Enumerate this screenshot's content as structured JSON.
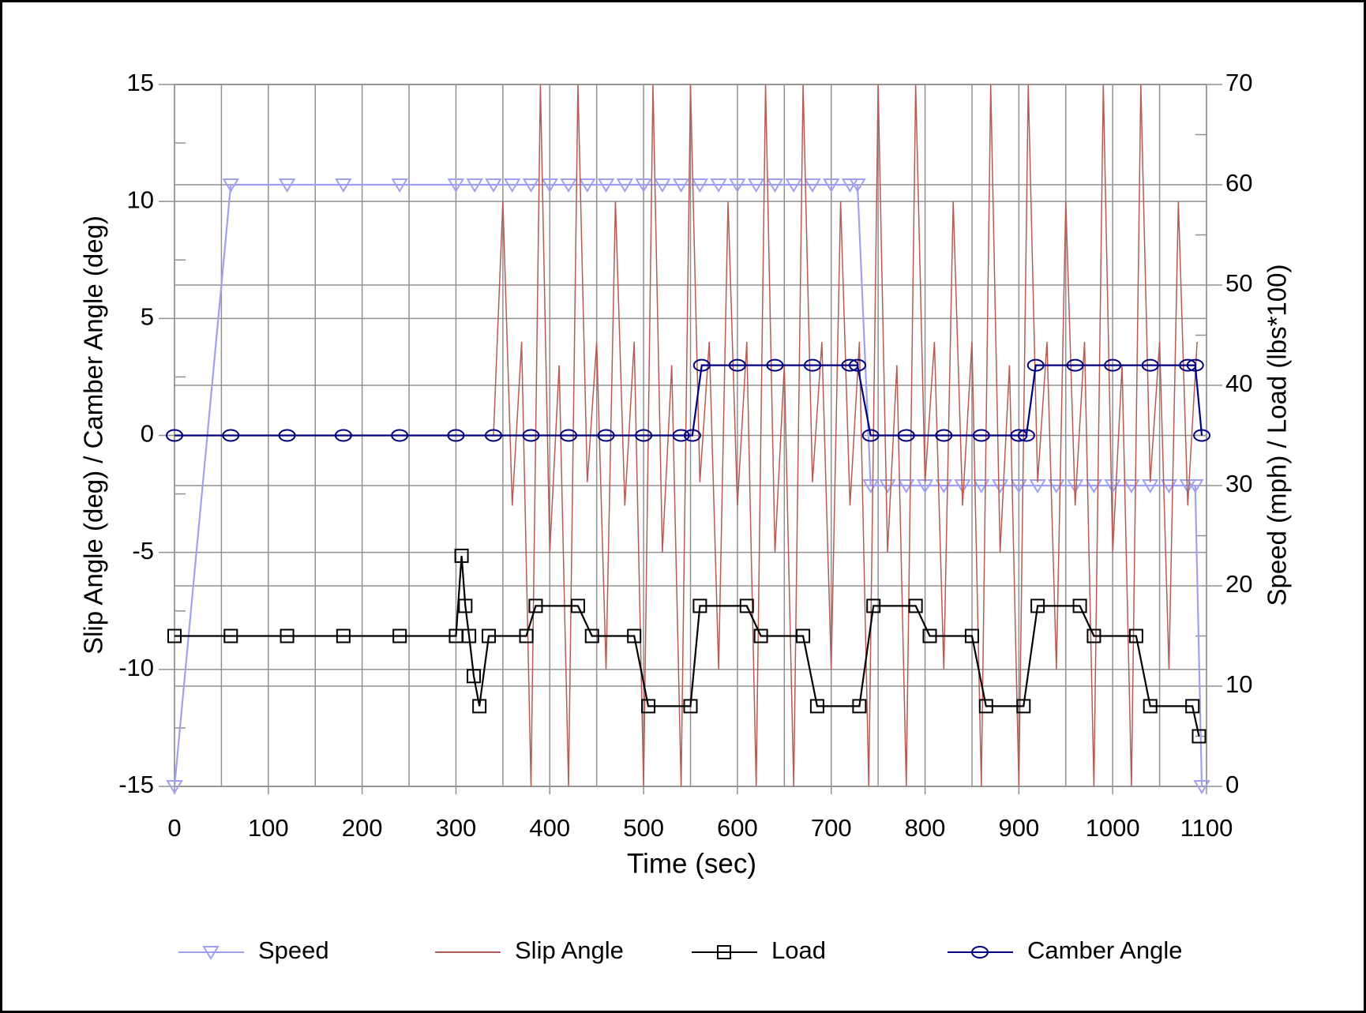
{
  "chart_data": {
    "type": "line",
    "xlabel": "Time (sec)",
    "ylabel": "Slip Angle (deg) / Camber Angle (deg)",
    "y2label": "Speed (mph) / Load (lbs*100)",
    "xlim": [
      0,
      1100
    ],
    "xticks": [
      0,
      100,
      200,
      300,
      400,
      500,
      600,
      700,
      800,
      900,
      1000,
      1100
    ],
    "xminor": [
      50,
      150,
      250,
      350,
      450,
      550,
      650,
      750,
      850,
      950,
      1050
    ],
    "ylim": [
      -15,
      15
    ],
    "yticks": [
      -15,
      -10,
      -5,
      0,
      5,
      10,
      15
    ],
    "yminor": [
      -12.5,
      -7.5,
      -2.5,
      2.5,
      7.5,
      12.5
    ],
    "y2lim": [
      0,
      70
    ],
    "y2ticks": [
      0,
      10,
      20,
      30,
      40,
      50,
      60,
      70
    ],
    "y2minor": [
      5,
      15,
      25,
      35,
      45,
      55,
      65
    ],
    "grid": true,
    "series": [
      {
        "name": "Speed",
        "color": "#a0a0f0",
        "axis": "y2",
        "marker": "triangle",
        "x": [
          0,
          60,
          120,
          180,
          240,
          300,
          320,
          340,
          360,
          380,
          400,
          420,
          440,
          460,
          480,
          500,
          520,
          540,
          560,
          580,
          600,
          620,
          640,
          660,
          680,
          700,
          720,
          728,
          742,
          760,
          780,
          800,
          820,
          840,
          860,
          880,
          900,
          920,
          940,
          960,
          980,
          1000,
          1020,
          1040,
          1060,
          1080,
          1088,
          1095
        ],
        "values": [
          0,
          60,
          60,
          60,
          60,
          60,
          60,
          60,
          60,
          60,
          60,
          60,
          60,
          60,
          60,
          60,
          60,
          60,
          60,
          60,
          60,
          60,
          60,
          60,
          60,
          60,
          60,
          60,
          30,
          30,
          30,
          30,
          30,
          30,
          30,
          30,
          30,
          30,
          30,
          30,
          30,
          30,
          30,
          30,
          30,
          30,
          30,
          0
        ]
      },
      {
        "name": "Slip Angle",
        "color": "#b85a50",
        "axis": "y",
        "marker": "none",
        "x": [
          0,
          340,
          350,
          360,
          370,
          380,
          390,
          400,
          410,
          420,
          430,
          440,
          450,
          460,
          470,
          480,
          490,
          500,
          510,
          520,
          530,
          540,
          550,
          560,
          570,
          580,
          590,
          600,
          610,
          620,
          630,
          640,
          650,
          660,
          670,
          680,
          690,
          700,
          710,
          720,
          730,
          740,
          750,
          760,
          770,
          780,
          790,
          800,
          810,
          820,
          830,
          840,
          850,
          860,
          870,
          880,
          890,
          900,
          910,
          920,
          930,
          940,
          950,
          960,
          970,
          980,
          990,
          1000,
          1010,
          1020,
          1030,
          1040,
          1050,
          1060,
          1070,
          1080,
          1090
        ],
        "values": [
          0,
          0,
          10,
          -3,
          4,
          -15,
          15,
          -5,
          3,
          -15,
          15,
          -2,
          4,
          -10,
          10,
          -3,
          4,
          -15,
          15,
          -5,
          3,
          -15,
          15,
          -2,
          4,
          -10,
          10,
          -3,
          4,
          -15,
          15,
          -5,
          3,
          -15,
          15,
          -2,
          4,
          -10,
          10,
          -3,
          4,
          -15,
          15,
          -5,
          3,
          -15,
          15,
          -2,
          4,
          -10,
          10,
          -3,
          4,
          -15,
          15,
          -5,
          3,
          -15,
          15,
          -2,
          4,
          -10,
          10,
          -3,
          4,
          -15,
          15,
          -5,
          3,
          -15,
          15,
          -2,
          4,
          -10,
          10,
          -3,
          4
        ]
      },
      {
        "name": "Load",
        "color": "#000000",
        "axis": "y2",
        "marker": "square",
        "x": [
          0,
          60,
          120,
          180,
          240,
          300,
          306,
          310,
          314,
          319,
          325,
          335,
          375,
          385,
          430,
          445,
          490,
          505,
          550,
          560,
          610,
          625,
          670,
          685,
          730,
          745,
          790,
          805,
          850,
          865,
          905,
          920,
          965,
          980,
          1025,
          1040,
          1085,
          1092
        ],
        "values": [
          15,
          15,
          15,
          15,
          15,
          15,
          23,
          18,
          15,
          11,
          8,
          15,
          15,
          18,
          18,
          15,
          15,
          8,
          8,
          18,
          18,
          15,
          15,
          8,
          8,
          18,
          18,
          15,
          15,
          8,
          8,
          18,
          18,
          15,
          15,
          8,
          8,
          5
        ]
      },
      {
        "name": "Camber Angle",
        "color": "#000080",
        "axis": "y",
        "marker": "circle",
        "x": [
          0,
          60,
          120,
          180,
          240,
          300,
          340,
          380,
          420,
          460,
          500,
          540,
          552,
          562,
          600,
          640,
          680,
          720,
          728,
          742,
          780,
          820,
          860,
          900,
          908,
          918,
          960,
          1000,
          1040,
          1080,
          1088,
          1095
        ],
        "values": [
          0,
          0,
          0,
          0,
          0,
          0,
          0,
          0,
          0,
          0,
          0,
          0,
          0,
          3,
          3,
          3,
          3,
          3,
          3,
          0,
          0,
          0,
          0,
          0,
          0,
          3,
          3,
          3,
          3,
          3,
          3,
          0
        ]
      }
    ]
  }
}
